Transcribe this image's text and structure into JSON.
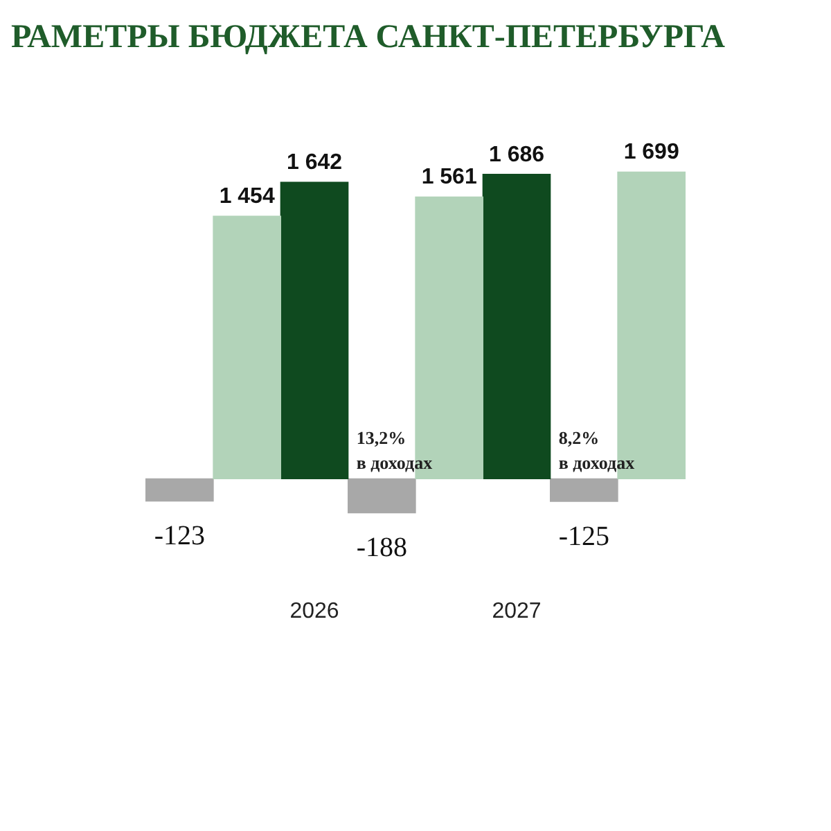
{
  "chart_data": {
    "type": "bar",
    "title": "РАМЕТРЫ БЮДЖЕТА САНКТ-ПЕТЕРБУРГА",
    "categories": [
      null,
      "2026",
      "2027",
      null
    ],
    "series": [
      {
        "color": "#b2d3b9",
        "values": [
          null,
          1454,
          1561,
          1699
        ],
        "value_labels": [
          null,
          "1 454",
          "1 561",
          "1 699"
        ]
      },
      {
        "color": "#0f4a1f",
        "values": [
          null,
          1642,
          1686,
          null
        ],
        "value_labels": [
          null,
          "1 642",
          "1 686",
          null
        ]
      },
      {
        "color": "#a8a8a8",
        "values": [
          -123,
          -188,
          -125,
          null
        ],
        "value_labels": [
          "-123",
          "-188",
          "-125",
          null
        ]
      }
    ],
    "annotations": [
      {
        "text": "13,2% в доходах",
        "x": "2026",
        "y": 0
      },
      {
        "text": "8,2% в доходах",
        "x": "2027",
        "y": 0
      }
    ],
    "tick_labels": "x",
    "grid": false,
    "legend": false
  }
}
